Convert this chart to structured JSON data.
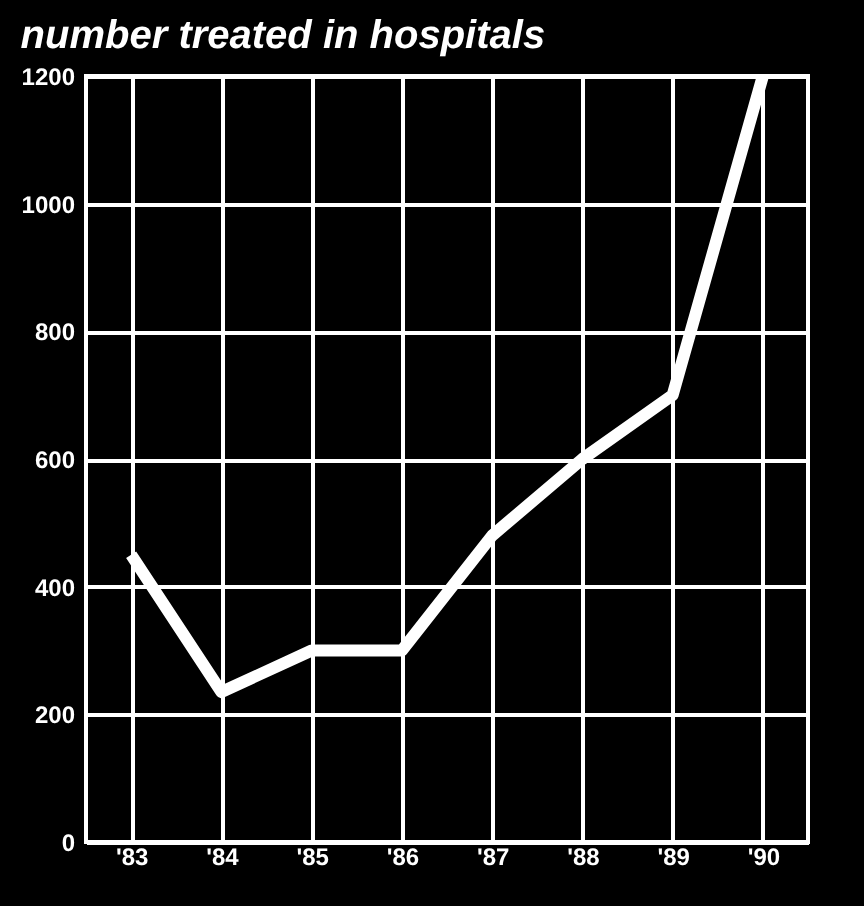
{
  "chart_data": {
    "type": "line",
    "title": "number treated in hospitals",
    "categories": [
      "'83",
      "'84",
      "'85",
      "'86",
      "'87",
      "'88",
      "'89",
      "'90"
    ],
    "series": [
      {
        "color": "#ffffff",
        "values": [
          450,
          235,
          300,
          300,
          480,
          600,
          700,
          1200
        ]
      }
    ],
    "ylim": [
      0,
      1200
    ],
    "yticks": [
      0,
      200,
      400,
      600,
      800,
      1000,
      1200
    ],
    "grid": true
  }
}
